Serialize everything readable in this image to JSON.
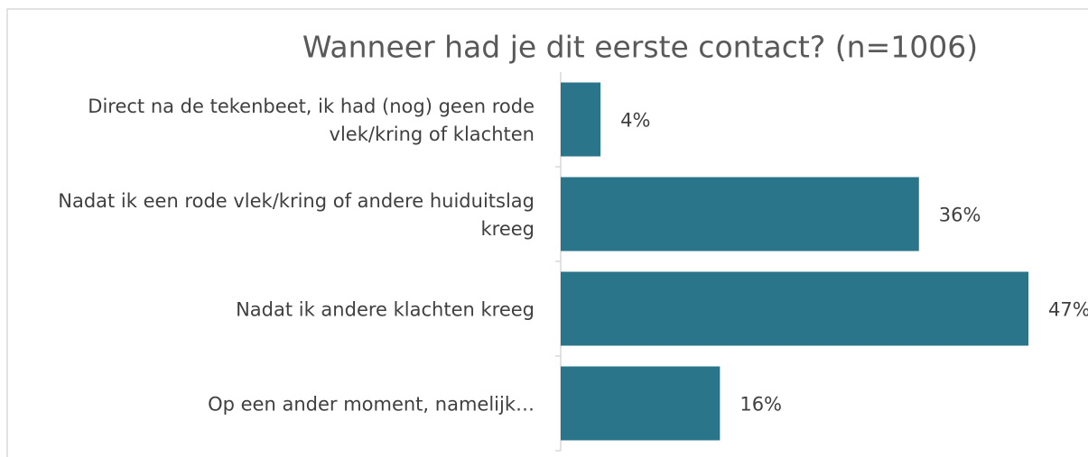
{
  "chart_data": {
    "type": "bar",
    "orientation": "horizontal",
    "title": "Wanneer had je dit eerste contact? (n=1006)",
    "categories": [
      "Direct na de tekenbeet, ik had (nog) geen rode vlek/kring of klachten",
      "Nadat ik een rode vlek/kring of andere huiduitslag kreeg",
      "Nadat ik andere klachten kreeg",
      "Op een ander moment, namelijk…"
    ],
    "values": [
      4,
      36,
      47,
      16
    ],
    "value_labels": [
      "4%",
      "36%",
      "47%",
      "16%"
    ],
    "color": "#2a7589"
  }
}
